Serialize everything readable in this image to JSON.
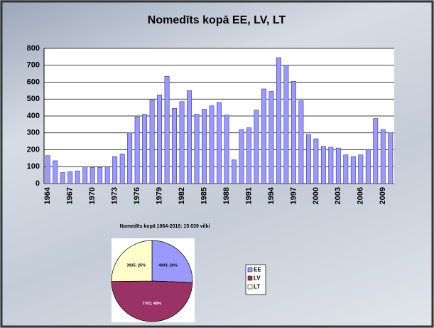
{
  "chart_data": [
    {
      "type": "bar",
      "title": "Nomedīts kopā EE, LV, LT",
      "categories": [
        "1964",
        null,
        null,
        "1967",
        null,
        null,
        "1970",
        null,
        null,
        "1973",
        null,
        null,
        "1976",
        null,
        null,
        "1979",
        null,
        null,
        "1982",
        null,
        null,
        "1985",
        null,
        null,
        "1988",
        null,
        null,
        "1991",
        null,
        null,
        "1994",
        null,
        null,
        "1997",
        null,
        null,
        "2000",
        null,
        null,
        "2003",
        null,
        null,
        "2006",
        null,
        null,
        "2009",
        null
      ],
      "values": [
        165,
        135,
        65,
        70,
        75,
        100,
        95,
        95,
        100,
        160,
        175,
        300,
        395,
        410,
        495,
        525,
        635,
        445,
        485,
        550,
        410,
        440,
        460,
        480,
        405,
        140,
        320,
        330,
        435,
        560,
        545,
        745,
        700,
        605,
        490,
        290,
        265,
        220,
        215,
        210,
        170,
        160,
        170,
        200,
        385,
        320,
        300
      ],
      "color": "#9999ff",
      "ylim": [
        0,
        800
      ],
      "yticks": [
        0,
        100,
        200,
        300,
        400,
        500,
        600,
        700,
        800
      ],
      "grid": true
    },
    {
      "type": "pie",
      "title": "Nomedīts kopā 1964-2010: 15 639 vilki",
      "categories": [
        "EE",
        "LV",
        "LT"
      ],
      "values": [
        4003,
        7701,
        3935
      ],
      "value_labels": [
        "4003; 26%",
        "7701; 49%",
        "3935; 25%"
      ],
      "colors": [
        "#9999ff",
        "#993366",
        "#ffffcc"
      ]
    }
  ]
}
